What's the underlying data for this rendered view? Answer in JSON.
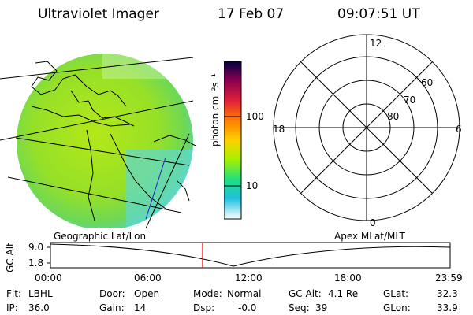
{
  "header": {
    "instrument": "Ultraviolet Imager",
    "date": "17 Feb 07",
    "time": "09:07:51 UT"
  },
  "colorbar": {
    "unit_label": "photon cm⁻²s⁻¹",
    "ticks": [
      "100",
      "10"
    ],
    "scale": "log",
    "colors": [
      "#000040",
      "#8b0050",
      "#e0203a",
      "#ff7a00",
      "#ffd000",
      "#a8f000",
      "#20e080",
      "#20c0e0",
      "#ffffff"
    ]
  },
  "polar_plot": {
    "labels": {
      "top": "12",
      "left": "18",
      "right": "6",
      "bottom": "0",
      "ring_60": "60",
      "ring_70": "70",
      "ring_80": "80"
    }
  },
  "altitude_panel": {
    "axis_label": "GC Alt",
    "y_max": "9.0",
    "y_min": "1.8",
    "left_title": "Geographic Lat/Lon",
    "right_title": "Apex MLat/MLT",
    "x_ticks": [
      "00:00",
      "06:00",
      "12:00",
      "18:00",
      "23:59"
    ],
    "current_time_marker_hours": 9.13
  },
  "info": {
    "filter_label": "Flt:",
    "filter_value": "LBHL",
    "ip_label": "IP:",
    "ip_value": "36.0",
    "door_label": "Door:",
    "door_value": "Open",
    "gain_label": "Gain:",
    "gain_value": "14",
    "mode_label": "Mode:",
    "mode_value": "Normal",
    "dsp_label": "Dsp:",
    "dsp_value": "-0.0",
    "gcalt_label": "GC Alt:",
    "gcalt_value": "4.1 Re",
    "seq_label": "Seq:",
    "seq_value": "39",
    "glat_label": "GLat:",
    "glat_value": "32.3",
    "glon_label": "GLon:",
    "glon_value": "33.9"
  },
  "colors": {
    "marker": "#ff0000",
    "image_base": "#8fdc28"
  }
}
